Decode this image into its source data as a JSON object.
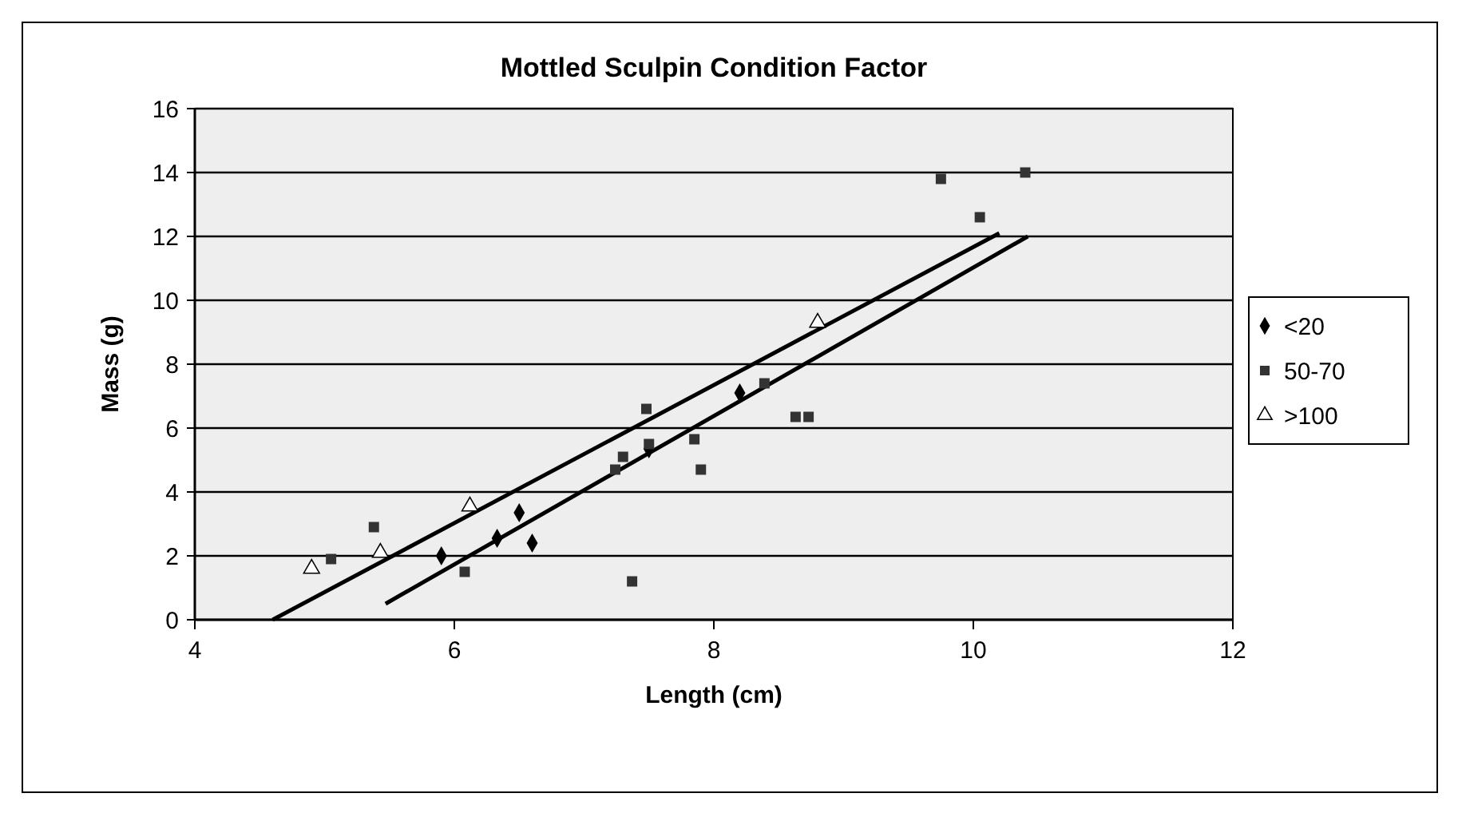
{
  "chart_data": {
    "type": "scatter",
    "title": "Mottled Sculpin Condition Factor",
    "xlabel": "Length (cm)",
    "ylabel": "Mass (g)",
    "xlim": [
      4,
      12
    ],
    "xticks": [
      4,
      6,
      8,
      10,
      12
    ],
    "ylim": [
      0,
      16
    ],
    "yticks": [
      0,
      2,
      4,
      6,
      8,
      10,
      12,
      14,
      16
    ],
    "grid": "y",
    "legend": "right",
    "series": [
      {
        "name": "<20",
        "color": "#000000",
        "marker": "diamond",
        "x": [
          5.9,
          6.33,
          6.5,
          6.6,
          7.5,
          8.2
        ],
        "values": [
          2.0,
          2.55,
          3.35,
          2.4,
          5.35,
          7.1
        ]
      },
      {
        "name": "50-70",
        "color": "#333333",
        "marker": "square",
        "x": [
          5.05,
          5.38,
          6.08,
          7.24,
          7.3,
          7.37,
          7.48,
          7.5,
          7.85,
          7.9,
          8.39,
          8.63,
          8.73,
          9.75,
          10.05,
          10.4
        ],
        "values": [
          1.9,
          2.9,
          1.5,
          4.7,
          5.1,
          1.2,
          6.6,
          5.5,
          5.65,
          4.7,
          7.4,
          6.35,
          6.35,
          13.8,
          12.6,
          14.0
        ]
      },
      {
        "name": ">100",
        "color": "#ffffff",
        "marker": "triangle",
        "x": [
          4.9,
          5.43,
          6.12,
          8.8
        ],
        "values": [
          1.6,
          2.1,
          3.55,
          9.3
        ]
      },
      {
        "type": "line",
        "color": "#000000",
        "line_style": "solid",
        "marker": "none",
        "x": [
          4.6,
          10.2
        ],
        "values": [
          0,
          12.1
        ]
      },
      {
        "type": "line",
        "color": "#000000",
        "line_style": "solid",
        "marker": "none",
        "x": [
          5.47,
          10.42
        ],
        "values": [
          0.5,
          12.0
        ]
      }
    ]
  }
}
